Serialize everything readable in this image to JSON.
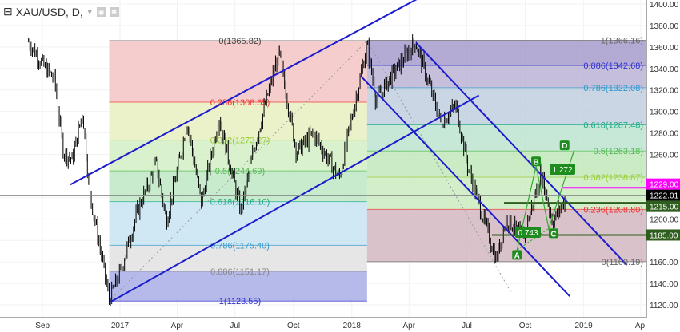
{
  "header": {
    "symbol": "XAU/USD, D,",
    "menu_icon": "collapse-square-icon",
    "dropdown_icon": "chevron-down-icon",
    "eye_icon": "eye-icon",
    "settings_icon": "gear-icon"
  },
  "chart_data": {
    "type": "candlestick",
    "ylim": [
      1110,
      1410
    ],
    "y_ticks": [
      1120,
      1140,
      1160,
      1180,
      1200,
      1220,
      1240,
      1260,
      1280,
      1300,
      1320,
      1340,
      1360,
      1380,
      1400
    ],
    "x_ticks": [
      [
        "2016-09-01",
        "Sep"
      ],
      [
        "2017-01-01",
        "2017"
      ],
      [
        "2017-04-01",
        "Apr"
      ],
      [
        "2017-07-01",
        "Jul"
      ],
      [
        "2017-10-01",
        "Oct"
      ],
      [
        "2018-01-01",
        "2018"
      ],
      [
        "2018-04-01",
        "Apr"
      ],
      [
        "2018-07-01",
        "Jul"
      ],
      [
        "2018-10-01",
        "Oct"
      ],
      [
        "2019-01-01",
        "2019"
      ],
      [
        "2019-04-01",
        "Ap"
      ]
    ],
    "price_path": [
      [
        "2016-08-10",
        1365
      ],
      [
        "2016-09-05",
        1340
      ],
      [
        "2016-09-20",
        1330
      ],
      [
        "2016-10-04",
        1262
      ],
      [
        "2016-10-18",
        1255
      ],
      [
        "2016-11-03",
        1300
      ],
      [
        "2016-11-14",
        1225
      ],
      [
        "2016-12-01",
        1172
      ],
      [
        "2016-12-15",
        1125
      ],
      [
        "2017-01-01",
        1150
      ],
      [
        "2017-01-30",
        1210
      ],
      [
        "2017-02-27",
        1252
      ],
      [
        "2017-03-15",
        1198
      ],
      [
        "2017-04-17",
        1290
      ],
      [
        "2017-05-09",
        1215
      ],
      [
        "2017-06-06",
        1295
      ],
      [
        "2017-07-10",
        1207
      ],
      [
        "2017-08-01",
        1268
      ],
      [
        "2017-09-08",
        1355
      ],
      [
        "2017-10-06",
        1262
      ],
      [
        "2017-11-01",
        1280
      ],
      [
        "2017-12-12",
        1238
      ],
      [
        "2018-01-25",
        1362
      ],
      [
        "2018-02-08",
        1310
      ],
      [
        "2018-03-01",
        1330
      ],
      [
        "2018-04-11",
        1365
      ],
      [
        "2018-05-21",
        1290
      ],
      [
        "2018-06-14",
        1305
      ],
      [
        "2018-07-02",
        1250
      ],
      [
        "2018-08-16",
        1162
      ],
      [
        "2018-09-01",
        1200
      ],
      [
        "2018-09-28",
        1183
      ],
      [
        "2018-10-26",
        1243
      ],
      [
        "2018-11-13",
        1197
      ],
      [
        "2018-12-06",
        1222
      ]
    ],
    "fib_left": {
      "from": "2016-12-15",
      "to": "2018-01-25",
      "levels": [
        [
          "0",
          "1365.82"
        ],
        [
          "0.236",
          "1308.65"
        ],
        [
          "0.382",
          "1273.27"
        ],
        [
          "0.5",
          "1244.69"
        ],
        [
          "0.618",
          "1216.10"
        ],
        [
          "0.786",
          "1175.40"
        ],
        [
          "0.886",
          "1151.17"
        ],
        [
          "1",
          "1123.55"
        ]
      ]
    },
    "fib_right": {
      "from": "2018-01-25",
      "to": "2019-04-05",
      "levels": [
        [
          "1",
          "1366.16"
        ],
        [
          "0.886",
          "1342.68"
        ],
        [
          "0.786",
          "1322.08"
        ],
        [
          "0.618",
          "1287.48"
        ],
        [
          "0.5",
          "1263.18"
        ],
        [
          "0.382",
          "1238.87"
        ],
        [
          "0.236",
          "1208.80"
        ],
        [
          "0",
          "1160.19"
        ]
      ]
    },
    "horizontal_lines": [
      {
        "price": 1229.0,
        "label": "1229.00",
        "color": "#ff00ff"
      },
      {
        "price": 1222.01,
        "label": "1222.01",
        "color": "#000000"
      },
      {
        "price": 1215.0,
        "label": "1215.00",
        "color": "#2e5e1e"
      },
      {
        "price": 1185.0,
        "label": "1185.00",
        "color": "#2e5e1e"
      }
    ],
    "abcd": {
      "points": [
        [
          "A",
          "2018-09-18",
          1171
        ],
        [
          "B",
          "2018-10-18",
          1249
        ],
        [
          "C",
          "2018-11-07",
          1191
        ],
        [
          "D",
          "2018-12-17",
          1264
        ]
      ],
      "ratios": [
        "0.743",
        "1.272"
      ]
    },
    "trendlines": [
      [
        [
          "2016-10-15",
          1232
        ],
        [
          "2018-04-15",
          1405
        ]
      ],
      [
        [
          "2016-12-15",
          1122
        ],
        [
          "2018-07-20",
          1315
        ]
      ],
      [
        [
          "2018-04-12",
          1364
        ],
        [
          "2019-03-10",
          1157
        ]
      ],
      [
        [
          "2018-01-15",
          1333
        ],
        [
          "2018-12-10",
          1128
        ]
      ]
    ]
  }
}
